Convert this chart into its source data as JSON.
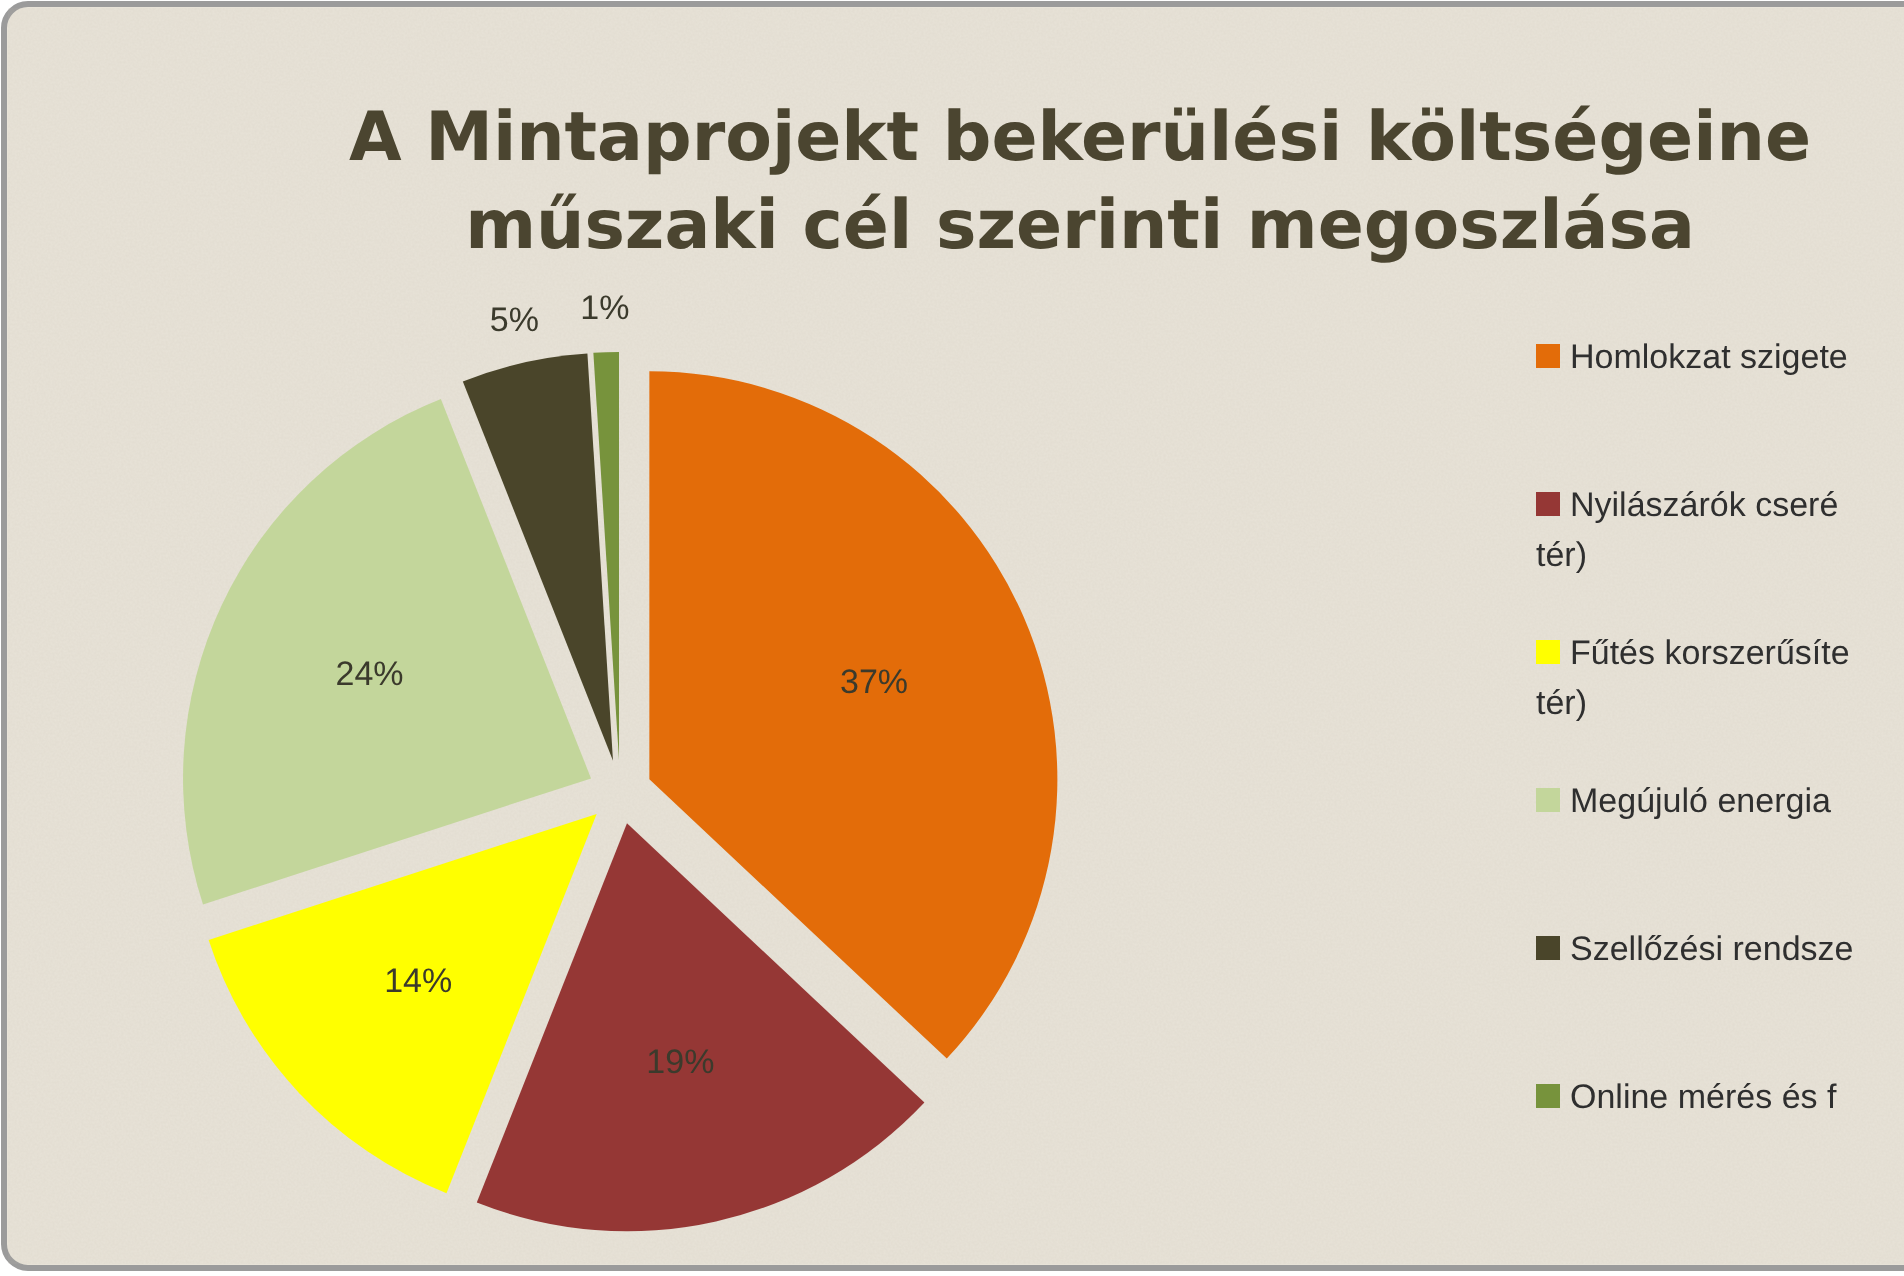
{
  "chart_data": {
    "type": "pie",
    "title": "A Mintaprojekt bekerülési költségeine\nműszaki cél szerinti megoszlása",
    "categories": [
      "Homlokzat szigete",
      "Nyilászárók cseré\ntér)",
      "Fűtés korszerűsíte\ntér)",
      "Megújuló energia",
      "Szellőzési rendsze",
      "Online mérés és f"
    ],
    "values": [
      37,
      19,
      14,
      24,
      5,
      1
    ],
    "colors": [
      "#e36c09",
      "#953735",
      "#ffff00",
      "#c3d69b",
      "#4a452a",
      "#77933c"
    ],
    "value_labels": [
      "37%",
      "19%",
      "14%",
      "24%",
      "5%",
      "1%"
    ],
    "legend": "right"
  }
}
